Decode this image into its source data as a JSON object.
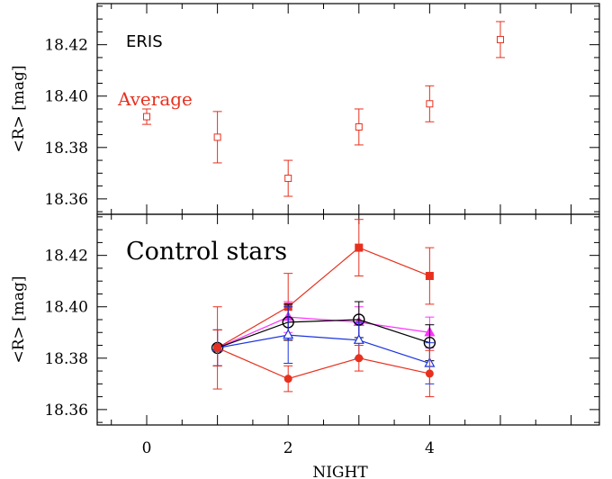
{
  "chart_data": [
    {
      "type": "scatter",
      "panel": "top",
      "title": "",
      "xlabel": "",
      "ylabel": "<R> [mag]",
      "xlim": [
        -0.7,
        6.4
      ],
      "ylim": [
        18.354,
        18.436
      ],
      "xticks": [
        0,
        2,
        4
      ],
      "yticks": [
        18.36,
        18.38,
        18.4,
        18.42
      ],
      "ytick_labels": [
        "18.36",
        "18.38",
        "18.40",
        "18.42"
      ],
      "labels": {
        "object": "ERIS",
        "average": "Average"
      },
      "series": [
        {
          "color": "#e8301e",
          "marker": "open-square",
          "connected": false,
          "x": [
            0,
            1,
            2,
            3,
            4,
            5
          ],
          "y": [
            18.392,
            18.384,
            18.368,
            18.388,
            18.397,
            18.422
          ],
          "err": [
            0.003,
            0.01,
            0.007,
            0.007,
            0.007,
            0.007
          ]
        }
      ]
    },
    {
      "type": "line",
      "panel": "bottom",
      "title": "",
      "xlabel": "NIGHT",
      "ylabel": "<R> [mag]",
      "xlim": [
        -0.7,
        6.4
      ],
      "ylim": [
        18.354,
        18.436
      ],
      "xticks": [
        0,
        2,
        4
      ],
      "xtick_labels": [
        "0",
        "2",
        "4"
      ],
      "yticks": [
        18.36,
        18.38,
        18.4,
        18.42
      ],
      "ytick_labels": [
        "18.36",
        "18.38",
        "18.40",
        "18.42"
      ],
      "labels": {
        "panel": "Control stars"
      },
      "series": [
        {
          "color": "#e8301e",
          "marker": "filled-square",
          "x": [
            1,
            2,
            3,
            4
          ],
          "y": [
            18.384,
            18.4,
            18.423,
            18.412
          ],
          "err": [
            0.016,
            0.013,
            0.011,
            0.011
          ]
        },
        {
          "color": "#ff33ff",
          "marker": "filled-triangle",
          "x": [
            1,
            2,
            3,
            4
          ],
          "y": [
            18.384,
            18.396,
            18.394,
            18.39
          ],
          "err": [
            0.007,
            0.006,
            0.006,
            0.006
          ]
        },
        {
          "color": "#000000",
          "marker": "open-circle",
          "x": [
            1,
            2,
            3,
            4
          ],
          "y": [
            18.384,
            18.394,
            18.395,
            18.386
          ],
          "err": [
            0.007,
            0.007,
            0.007,
            0.007
          ]
        },
        {
          "color": "#1a33e0",
          "marker": "open-triangle",
          "x": [
            1,
            2,
            3,
            4
          ],
          "y": [
            18.384,
            18.389,
            18.387,
            18.378
          ],
          "err": [
            0.007,
            0.011,
            0.007,
            0.008
          ]
        },
        {
          "color": "#e8301e",
          "marker": "filled-circle",
          "x": [
            1,
            2,
            3,
            4
          ],
          "y": [
            18.384,
            18.372,
            18.38,
            18.374
          ],
          "err": [
            0.007,
            0.005,
            0.005,
            0.009
          ]
        }
      ]
    }
  ]
}
